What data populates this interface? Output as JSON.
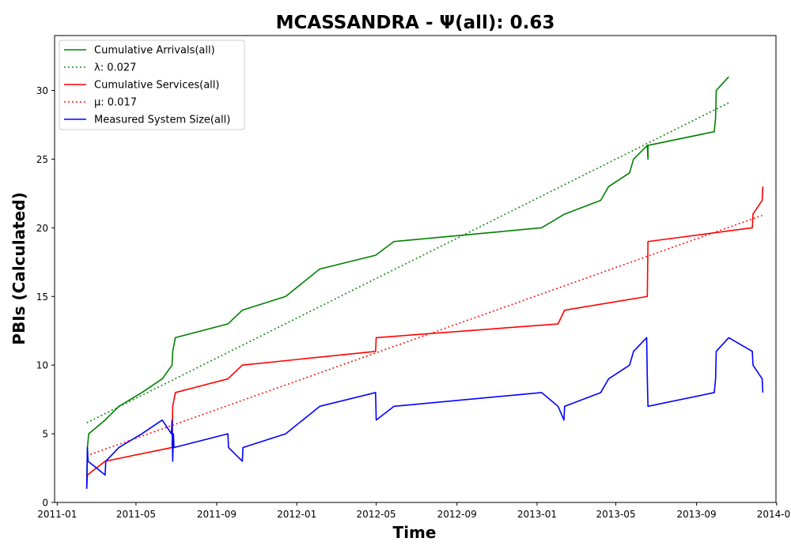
{
  "chart_data": {
    "type": "line",
    "title": "MCASSANDRA -  Ψ(all): 0.63",
    "xlabel": "Time",
    "ylabel": "PBIs (Calculated)",
    "xlim": [
      "2010-12-28",
      "2013-12-31"
    ],
    "ylim": [
      0,
      34
    ],
    "x_ticks": [
      "2011-01",
      "2011-05",
      "2011-09",
      "2012-01",
      "2012-05",
      "2012-09",
      "2013-01",
      "2013-05",
      "2013-09",
      "2014-01"
    ],
    "y_ticks": [
      0,
      5,
      10,
      15,
      20,
      25,
      30
    ],
    "grid": false,
    "legend_position": "top-left",
    "series": [
      {
        "name": "Cumulative Arrivals(all)",
        "color": "#008000",
        "style": "solid",
        "points": [
          [
            "2011-02-15",
            1
          ],
          [
            "2011-02-16",
            4
          ],
          [
            "2011-02-18",
            5
          ],
          [
            "2011-03-15",
            6
          ],
          [
            "2011-04-05",
            7
          ],
          [
            "2011-05-10",
            8
          ],
          [
            "2011-06-10",
            9
          ],
          [
            "2011-06-25",
            10
          ],
          [
            "2011-06-26",
            11
          ],
          [
            "2011-06-30",
            12
          ],
          [
            "2011-09-18",
            13
          ],
          [
            "2011-10-10",
            14
          ],
          [
            "2011-12-15",
            15
          ],
          [
            "2012-01-10",
            16
          ],
          [
            "2012-02-05",
            17
          ],
          [
            "2012-04-30",
            18
          ],
          [
            "2012-05-28",
            19
          ],
          [
            "2013-01-08",
            20
          ],
          [
            "2013-02-12",
            21
          ],
          [
            "2013-04-08",
            22
          ],
          [
            "2013-04-20",
            23
          ],
          [
            "2013-05-22",
            24
          ],
          [
            "2013-05-28",
            25
          ],
          [
            "2013-06-18",
            26
          ],
          [
            "2013-06-19",
            25
          ],
          [
            "2013-06-19",
            26
          ],
          [
            "2013-09-28",
            27
          ],
          [
            "2013-09-30",
            28
          ],
          [
            "2013-10-01",
            30
          ],
          [
            "2013-10-20",
            31
          ]
        ]
      },
      {
        "name": "λ: 0.027",
        "color": "#008000",
        "style": "dotted",
        "points": [
          [
            "2011-02-15",
            5.8
          ],
          [
            "2013-10-20",
            29.1
          ]
        ]
      },
      {
        "name": "Cumulative Services(all)",
        "color": "#ff0000",
        "style": "solid",
        "points": [
          [
            "2011-02-15",
            1
          ],
          [
            "2011-02-16",
            2
          ],
          [
            "2011-03-15",
            3
          ],
          [
            "2011-06-25",
            4
          ],
          [
            "2011-06-26",
            7
          ],
          [
            "2011-06-30",
            8
          ],
          [
            "2011-09-18",
            9
          ],
          [
            "2011-10-10",
            10
          ],
          [
            "2012-04-30",
            11
          ],
          [
            "2012-05-01",
            12
          ],
          [
            "2013-02-02",
            13
          ],
          [
            "2013-02-12",
            14
          ],
          [
            "2013-06-18",
            15
          ],
          [
            "2013-06-19",
            19
          ],
          [
            "2013-11-25",
            20
          ],
          [
            "2013-11-26",
            21
          ],
          [
            "2013-12-10",
            22
          ],
          [
            "2013-12-11",
            23
          ]
        ]
      },
      {
        "name": "μ: 0.017",
        "color": "#ff0000",
        "style": "dotted",
        "points": [
          [
            "2011-02-15",
            3.4
          ],
          [
            "2013-12-10",
            20.9
          ]
        ]
      },
      {
        "name": "Measured System Size(all)",
        "color": "#0000ff",
        "style": "solid",
        "points": [
          [
            "2011-02-15",
            1
          ],
          [
            "2011-02-16",
            4
          ],
          [
            "2011-02-17",
            3
          ],
          [
            "2011-03-15",
            2
          ],
          [
            "2011-03-16",
            3
          ],
          [
            "2011-04-05",
            4
          ],
          [
            "2011-05-10",
            5
          ],
          [
            "2011-06-10",
            6
          ],
          [
            "2011-06-24",
            5
          ],
          [
            "2011-06-25",
            6
          ],
          [
            "2011-06-26",
            3
          ],
          [
            "2011-06-27",
            5
          ],
          [
            "2011-06-28",
            4
          ],
          [
            "2011-09-18",
            5
          ],
          [
            "2011-09-19",
            4
          ],
          [
            "2011-10-10",
            3
          ],
          [
            "2011-10-11",
            4
          ],
          [
            "2011-12-15",
            5
          ],
          [
            "2012-01-10",
            6
          ],
          [
            "2012-02-05",
            7
          ],
          [
            "2012-04-30",
            8
          ],
          [
            "2012-05-01",
            6
          ],
          [
            "2012-05-28",
            7
          ],
          [
            "2013-01-08",
            8
          ],
          [
            "2013-02-02",
            7
          ],
          [
            "2013-02-11",
            6
          ],
          [
            "2013-02-12",
            7
          ],
          [
            "2013-04-08",
            8
          ],
          [
            "2013-04-20",
            9
          ],
          [
            "2013-05-22",
            10
          ],
          [
            "2013-05-28",
            11
          ],
          [
            "2013-06-17",
            12
          ],
          [
            "2013-06-18",
            9
          ],
          [
            "2013-06-19",
            7
          ],
          [
            "2013-09-28",
            8
          ],
          [
            "2013-09-30",
            9
          ],
          [
            "2013-10-01",
            11
          ],
          [
            "2013-10-20",
            12
          ],
          [
            "2013-11-25",
            11
          ],
          [
            "2013-11-26",
            10
          ],
          [
            "2013-12-10",
            9
          ],
          [
            "2013-12-11",
            8
          ]
        ]
      }
    ]
  }
}
